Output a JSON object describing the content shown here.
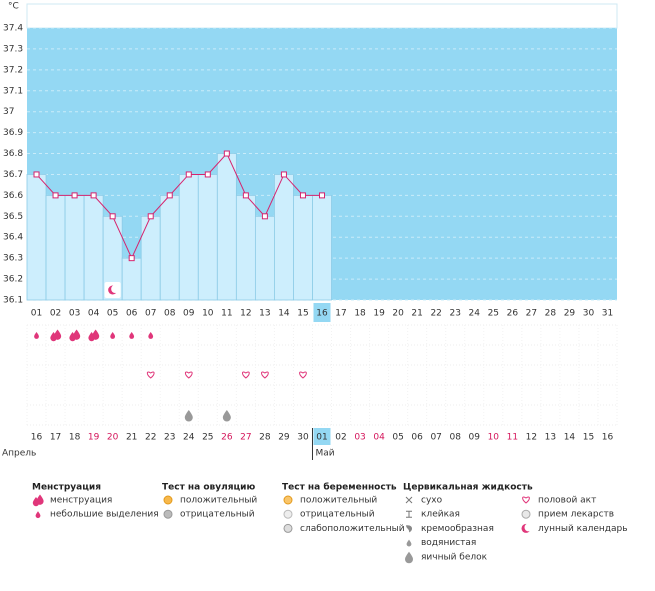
{
  "chart_data": {
    "type": "line",
    "y_label": "°C",
    "categories": [
      "01",
      "02",
      "03",
      "04",
      "05",
      "06",
      "07",
      "08",
      "09",
      "10",
      "11",
      "12",
      "13",
      "14",
      "15",
      "16",
      "17",
      "18",
      "19",
      "20",
      "21",
      "22",
      "23",
      "24",
      "25",
      "26",
      "27",
      "28",
      "29",
      "30",
      "31"
    ],
    "current_day": "16",
    "series": [
      {
        "color": "#d6246e",
        "values": [
          36.7,
          36.6,
          36.6,
          36.6,
          36.5,
          36.3,
          36.5,
          36.6,
          36.7,
          36.7,
          36.8,
          36.6,
          36.5,
          36.7,
          36.6,
          36.6,
          null,
          null,
          null,
          null,
          null,
          null,
          null,
          null,
          null,
          null,
          null,
          null,
          null,
          null,
          null
        ]
      }
    ],
    "bar_color": "#cdeefd",
    "background": "#94d8f3",
    "ylim": [
      36.1,
      37.4
    ],
    "yticks": [
      36.1,
      36.2,
      36.3,
      36.4,
      36.5,
      36.6,
      36.7,
      36.8,
      36.9,
      37,
      37.1,
      37.2,
      37.3,
      37.4
    ],
    "grid": true,
    "dates": [
      "16",
      "17",
      "18",
      "19",
      "20",
      "21",
      "22",
      "23",
      "24",
      "25",
      "26",
      "27",
      "28",
      "29",
      "30",
      "01",
      "02",
      "03",
      "04",
      "05",
      "06",
      "07",
      "08",
      "09",
      "10",
      "11",
      "12",
      "13",
      "14",
      "15",
      "16"
    ],
    "red_dates": [
      "19",
      "20",
      "26",
      "27",
      "03",
      "04",
      "10",
      "11"
    ],
    "red_color": "#d4145a",
    "months": [
      {
        "label": "Апрель",
        "date": "16"
      },
      {
        "label": "Май",
        "date": "01"
      }
    ],
    "legend_groups": [
      {
        "title": "Менструация",
        "items": [
          {
            "label": "менструация",
            "days": [
              "02",
              "03",
              "04"
            ]
          },
          {
            "label": "небольшие выделения",
            "days": [
              "01",
              "05",
              "06",
              "07"
            ]
          }
        ]
      },
      {
        "title": "Тест на овуляцию",
        "items": [
          {
            "label": "положительный",
            "days": []
          },
          {
            "label": "отрицательный",
            "days": []
          }
        ]
      },
      {
        "title": "Тест на беременность",
        "items": [
          {
            "label": "положительный",
            "days": []
          },
          {
            "label": "отрицательный",
            "days": []
          },
          {
            "label": "слабоположительный",
            "days": []
          }
        ]
      },
      {
        "title": "Цервикальная жидкость",
        "items": [
          {
            "label": "сухо",
            "days": []
          },
          {
            "label": "клейкая",
            "days": []
          },
          {
            "label": "кремообразная",
            "days": []
          },
          {
            "label": "водянистая",
            "days": []
          },
          {
            "label": "яичный белок",
            "days": [
              "09",
              "11"
            ]
          }
        ]
      },
      {
        "items": [
          {
            "label": "половой акт",
            "days": [
              "07",
              "09",
              "12",
              "13",
              "15"
            ]
          },
          {
            "label": "прием лекарств",
            "days": []
          },
          {
            "label": "лунный календарь",
            "days": [
              "05"
            ]
          }
        ]
      }
    ]
  }
}
